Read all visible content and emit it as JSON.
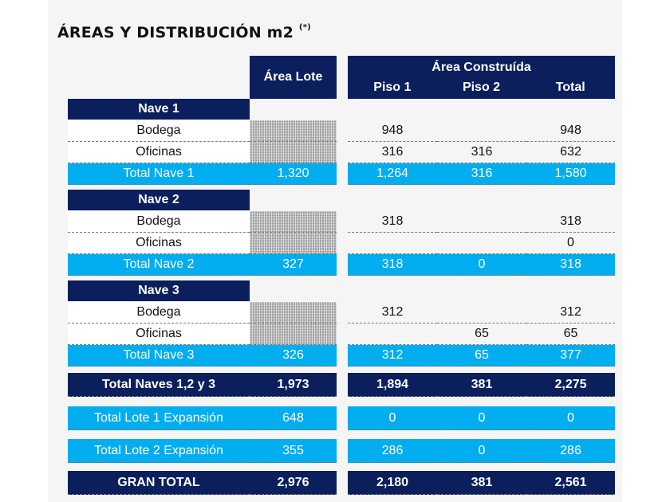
{
  "title": "ÁREAS Y DISTRIBUCIÓN m2",
  "title_note": "(*)",
  "headers": {
    "area_lote": "Área Lote",
    "area_construida": "Área Construída",
    "piso1": "Piso 1",
    "piso2": "Piso 2",
    "total": "Total"
  },
  "naves": [
    {
      "name": "Nave 1",
      "rows": [
        {
          "label": "Bodega",
          "piso1": "948",
          "piso2": "",
          "total": "948"
        },
        {
          "label": "Oficinas",
          "piso1": "316",
          "piso2": "316",
          "total": "632"
        }
      ],
      "subtotal": {
        "label": "Total  Nave 1",
        "lote": "1,320",
        "piso1": "1,264",
        "piso2": "316",
        "total": "1,580"
      }
    },
    {
      "name": "Nave 2",
      "rows": [
        {
          "label": "Bodega",
          "piso1": "318",
          "piso2": "",
          "total": "318"
        },
        {
          "label": "Oficinas",
          "piso1": "",
          "piso2": "",
          "total": "0"
        }
      ],
      "subtotal": {
        "label": "Total  Nave 2",
        "lote": "327",
        "piso1": "318",
        "piso2": "0",
        "total": "318"
      }
    },
    {
      "name": "Nave 3",
      "rows": [
        {
          "label": "Bodega",
          "piso1": "312",
          "piso2": "",
          "total": "312"
        },
        {
          "label": "Oficinas",
          "piso1": "",
          "piso2": "65",
          "total": "65"
        }
      ],
      "subtotal": {
        "label": "Total  Nave 3",
        "lote": "326",
        "piso1": "312",
        "piso2": "65",
        "total": "377"
      }
    }
  ],
  "summary": [
    {
      "label": "Total Naves 1,2 y 3",
      "lote": "1,973",
      "piso1": "1,894",
      "piso2": "381",
      "total": "2,275",
      "style": "big"
    },
    {
      "label": "Total Lote 1 Expansión",
      "lote": "648",
      "piso1": "0",
      "piso2": "0",
      "total": "0",
      "style": "lite"
    },
    {
      "label": "Total Lote 2 Expansión",
      "lote": "355",
      "piso1": "286",
      "piso2": "0",
      "total": "286",
      "style": "lite"
    },
    {
      "label": "GRAN TOTAL",
      "lote": "2,976",
      "piso1": "2,180",
      "piso2": "381",
      "total": "2,561",
      "style": "big"
    }
  ],
  "colors": {
    "navy": "#0a1f5c",
    "cyan": "#00adef",
    "panel": "#f5f5f5"
  }
}
